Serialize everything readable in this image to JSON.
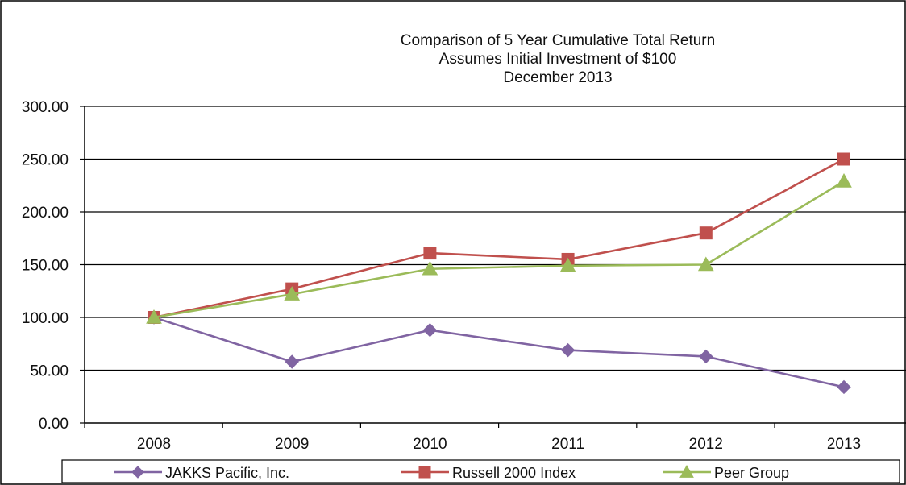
{
  "chart_data": {
    "type": "line",
    "title": [
      "Comparison of 5 Year Cumulative Total Return",
      "Assumes Initial Investment of $100",
      "December 2013"
    ],
    "categories": [
      "2008",
      "2009",
      "2010",
      "2011",
      "2012",
      "2013"
    ],
    "y_ticks": [
      "0.00",
      "50.00",
      "100.00",
      "150.00",
      "200.00",
      "250.00",
      "300.00"
    ],
    "ylim": [
      0,
      300
    ],
    "grid": true,
    "legend_position": "bottom",
    "series": [
      {
        "name": "JAKKS Pacific, Inc.",
        "color": "#8064a2",
        "marker": "diamond",
        "values": [
          100,
          58,
          88,
          69,
          63,
          34
        ]
      },
      {
        "name": "Russell 2000 Index",
        "color": "#c0504d",
        "marker": "square",
        "values": [
          100,
          127,
          161,
          155,
          180,
          250
        ]
      },
      {
        "name": "Peer Group",
        "color": "#9bbb59",
        "marker": "triangle",
        "values": [
          100,
          122,
          146,
          149,
          150,
          229
        ]
      }
    ]
  }
}
